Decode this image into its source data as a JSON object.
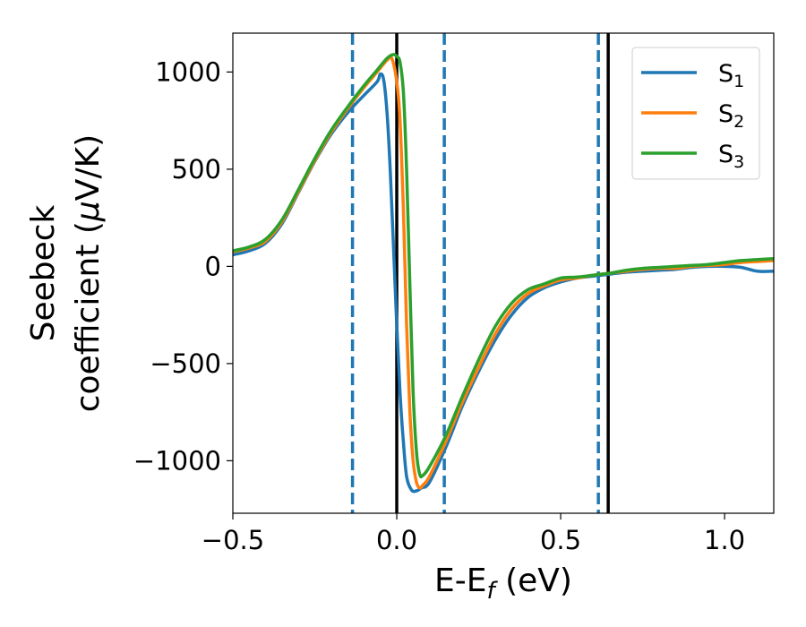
{
  "chart_data": {
    "type": "line",
    "xlabel": {
      "main": "E-E",
      "sub": "f",
      "unit": " (eV)"
    },
    "ylabel": {
      "line1": "Seebeck",
      "line2_prefix": "coefficient  (",
      "mu": "μ",
      "line2_suffix": "V/K)"
    },
    "xlim": [
      -0.5,
      1.15
    ],
    "ylim": [
      -1270,
      1200
    ],
    "xticks": [
      {
        "value": -0.5,
        "label": "−0.5"
      },
      {
        "value": 0.0,
        "label": "0.0"
      },
      {
        "value": 0.5,
        "label": "0.5"
      },
      {
        "value": 1.0,
        "label": "1.0"
      }
    ],
    "yticks": [
      {
        "value": 1000,
        "label": "1000"
      },
      {
        "value": 500,
        "label": "500"
      },
      {
        "value": 0,
        "label": "0"
      },
      {
        "value": -500,
        "label": "−500"
      },
      {
        "value": -1000,
        "label": "−1000"
      }
    ],
    "grid": false,
    "legend_position": "top-right",
    "vlines": [
      {
        "x": -0.135,
        "style": "dashed",
        "color": "#1f77b4"
      },
      {
        "x": 0.0,
        "style": "solid",
        "color": "#000000"
      },
      {
        "x": 0.145,
        "style": "dashed",
        "color": "#1f77b4"
      },
      {
        "x": 0.615,
        "style": "dashed",
        "color": "#1f77b4"
      },
      {
        "x": 0.645,
        "style": "solid",
        "color": "#000000"
      }
    ],
    "series": [
      {
        "name": "S",
        "sub": "1",
        "color": "#1f77b4",
        "points": [
          [
            -0.5,
            60
          ],
          [
            -0.45,
            80
          ],
          [
            -0.4,
            120
          ],
          [
            -0.35,
            220
          ],
          [
            -0.3,
            380
          ],
          [
            -0.25,
            540
          ],
          [
            -0.2,
            680
          ],
          [
            -0.15,
            790
          ],
          [
            -0.1,
            880
          ],
          [
            -0.06,
            950
          ],
          [
            -0.05,
            990
          ],
          [
            -0.04,
            960
          ],
          [
            -0.03,
            800
          ],
          [
            -0.02,
            500
          ],
          [
            -0.01,
            100
          ],
          [
            0.0,
            -300
          ],
          [
            0.01,
            -650
          ],
          [
            0.02,
            -900
          ],
          [
            0.03,
            -1080
          ],
          [
            0.045,
            -1150
          ],
          [
            0.06,
            -1155
          ],
          [
            0.075,
            -1140
          ],
          [
            0.1,
            -1110
          ],
          [
            0.15,
            -930
          ],
          [
            0.2,
            -720
          ],
          [
            0.25,
            -540
          ],
          [
            0.3,
            -380
          ],
          [
            0.35,
            -250
          ],
          [
            0.4,
            -160
          ],
          [
            0.45,
            -110
          ],
          [
            0.5,
            -80
          ],
          [
            0.55,
            -60
          ],
          [
            0.6,
            -50
          ],
          [
            0.65,
            -40
          ],
          [
            0.7,
            -30
          ],
          [
            0.75,
            -25
          ],
          [
            0.8,
            -20
          ],
          [
            0.85,
            -15
          ],
          [
            0.9,
            -5
          ],
          [
            0.95,
            0
          ],
          [
            1.0,
            0
          ],
          [
            1.05,
            -5
          ],
          [
            1.1,
            -25
          ],
          [
            1.15,
            -25
          ]
        ]
      },
      {
        "name": "S",
        "sub": "2",
        "color": "#ff7f0e",
        "points": [
          [
            -0.5,
            75
          ],
          [
            -0.45,
            95
          ],
          [
            -0.4,
            130
          ],
          [
            -0.35,
            230
          ],
          [
            -0.3,
            385
          ],
          [
            -0.25,
            545
          ],
          [
            -0.2,
            690
          ],
          [
            -0.15,
            810
          ],
          [
            -0.1,
            920
          ],
          [
            -0.06,
            1000
          ],
          [
            -0.03,
            1060
          ],
          [
            -0.015,
            1070
          ],
          [
            0.0,
            950
          ],
          [
            0.01,
            750
          ],
          [
            0.02,
            300
          ],
          [
            0.03,
            -300
          ],
          [
            0.04,
            -750
          ],
          [
            0.05,
            -1000
          ],
          [
            0.06,
            -1110
          ],
          [
            0.07,
            -1140
          ],
          [
            0.08,
            -1125
          ],
          [
            0.1,
            -1080
          ],
          [
            0.15,
            -900
          ],
          [
            0.2,
            -700
          ],
          [
            0.25,
            -520
          ],
          [
            0.3,
            -350
          ],
          [
            0.35,
            -220
          ],
          [
            0.4,
            -140
          ],
          [
            0.45,
            -100
          ],
          [
            0.5,
            -70
          ],
          [
            0.55,
            -60
          ],
          [
            0.6,
            -45
          ],
          [
            0.65,
            -35
          ],
          [
            0.7,
            -25
          ],
          [
            0.75,
            -15
          ],
          [
            0.8,
            -10
          ],
          [
            0.85,
            -10
          ],
          [
            0.9,
            0
          ],
          [
            0.95,
            5
          ],
          [
            1.0,
            10
          ],
          [
            1.05,
            20
          ],
          [
            1.1,
            25
          ],
          [
            1.15,
            30
          ]
        ]
      },
      {
        "name": "S",
        "sub": "3",
        "color": "#2ca02c",
        "points": [
          [
            -0.5,
            80
          ],
          [
            -0.45,
            100
          ],
          [
            -0.4,
            140
          ],
          [
            -0.35,
            240
          ],
          [
            -0.3,
            395
          ],
          [
            -0.25,
            555
          ],
          [
            -0.2,
            700
          ],
          [
            -0.15,
            820
          ],
          [
            -0.1,
            930
          ],
          [
            -0.06,
            1010
          ],
          [
            -0.03,
            1070
          ],
          [
            -0.01,
            1090
          ],
          [
            0.0,
            1080
          ],
          [
            0.01,
            1050
          ],
          [
            0.02,
            900
          ],
          [
            0.03,
            500
          ],
          [
            0.04,
            -100
          ],
          [
            0.05,
            -650
          ],
          [
            0.06,
            -950
          ],
          [
            0.07,
            -1070
          ],
          [
            0.08,
            -1075
          ],
          [
            0.1,
            -1030
          ],
          [
            0.15,
            -870
          ],
          [
            0.2,
            -670
          ],
          [
            0.25,
            -480
          ],
          [
            0.3,
            -310
          ],
          [
            0.35,
            -190
          ],
          [
            0.4,
            -120
          ],
          [
            0.45,
            -90
          ],
          [
            0.5,
            -60
          ],
          [
            0.55,
            -55
          ],
          [
            0.6,
            -45
          ],
          [
            0.65,
            -35
          ],
          [
            0.7,
            -20
          ],
          [
            0.75,
            -10
          ],
          [
            0.8,
            -5
          ],
          [
            0.85,
            0
          ],
          [
            0.9,
            5
          ],
          [
            0.95,
            10
          ],
          [
            1.0,
            20
          ],
          [
            1.05,
            30
          ],
          [
            1.1,
            35
          ],
          [
            1.15,
            40
          ]
        ]
      }
    ]
  }
}
